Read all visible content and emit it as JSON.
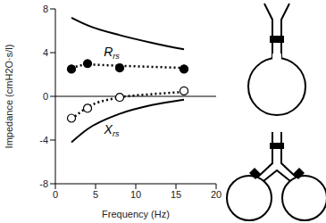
{
  "chart_data": {
    "type": "line",
    "x_label": "Frequency (Hz)",
    "y_label": "Impedance (cmH2O·s/l)",
    "xlim": [
      0,
      20
    ],
    "xticks": [
      0,
      5,
      10,
      15,
      20
    ],
    "ylim": [
      -8,
      8
    ],
    "yticks": [
      -8,
      -4,
      0,
      4,
      8
    ],
    "grid": false,
    "series": [
      {
        "type": "line",
        "line_style": "solid",
        "color": "#000000",
        "x": [
          2,
          4,
          8,
          12,
          16
        ],
        "values": [
          7.2,
          6.5,
          5.6,
          4.9,
          4.3
        ]
      },
      {
        "type": "line",
        "line_style": "solid",
        "color": "#000000",
        "x": [
          2,
          4,
          8,
          12,
          16
        ],
        "values": [
          -4.2,
          -3.0,
          -1.6,
          -0.8,
          -0.3
        ]
      },
      {
        "type": "line",
        "line_style": "dotted",
        "color": "#000000",
        "x": [
          2,
          4,
          8,
          16
        ],
        "values": [
          2.6,
          2.9,
          2.8,
          2.6
        ]
      },
      {
        "type": "line",
        "line_style": "dotted",
        "color": "#000000",
        "x": [
          2,
          4,
          8,
          12,
          16
        ],
        "values": [
          -2.1,
          -1.0,
          -0.1,
          0.2,
          0.4
        ]
      },
      {
        "type": "scatter",
        "marker": "filled_circle",
        "color": "#000000",
        "x": [
          2,
          4,
          8,
          16
        ],
        "values": [
          2.5,
          3.0,
          2.6,
          2.5
        ]
      },
      {
        "type": "scatter",
        "marker": "open_circle",
        "color": "#000000",
        "x": [
          2,
          4,
          8,
          16
        ],
        "values": [
          -2.0,
          -1.1,
          -0.1,
          0.5
        ]
      }
    ],
    "annotations": [
      {
        "text": "Rrs",
        "x": 7,
        "y": 4.1
      },
      {
        "text": "Xrs",
        "x": 7,
        "y": -3.0
      }
    ]
  }
}
